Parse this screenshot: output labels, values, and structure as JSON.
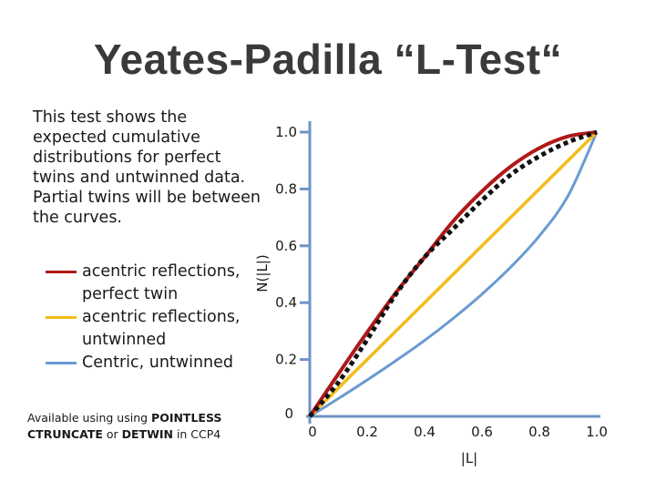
{
  "title": "Yeates-Padilla “L-Test“",
  "description": "This test shows the expected cumulative distributions for perfect twins and untwinned data. Partial twins will be between the curves.",
  "footer": {
    "p1": "Available using using ",
    "b1": "POINTLESS",
    "b2": "CTRUNCATE",
    "p2": " or ",
    "b3": "DETWIN",
    "p3": " in CCP4"
  },
  "colors": {
    "acentric_twin": "#b01818",
    "acentric_untwinned": "#f2bc1b",
    "centric_untwinned": "#6a9bd1",
    "axis": "#6f93c8",
    "observed": "#111111"
  },
  "chart_data": {
    "type": "line",
    "xlabel": "|L|",
    "ylabel": "N(|L|)",
    "xlim": [
      0,
      1
    ],
    "ylim": [
      0,
      1
    ],
    "xticks": [
      0,
      0.2,
      0.4,
      0.6,
      0.8,
      1.0
    ],
    "xtick_labels": [
      "0",
      "0.2",
      "0.4",
      "0.6",
      "0.8",
      "1.0"
    ],
    "yticks": [
      0,
      0.2,
      0.4,
      0.6,
      0.8,
      1.0
    ],
    "ytick_labels": [
      "0",
      "0.2",
      "0.4",
      "0.6",
      "0.8",
      "1.0"
    ],
    "legend_position": "left",
    "series": [
      {
        "name": "acentric reflections, perfect twin",
        "style": "solid",
        "x": [
          0,
          0.1,
          0.2,
          0.3,
          0.4,
          0.5,
          0.6,
          0.7,
          0.8,
          0.9,
          1.0
        ],
        "y": [
          0,
          0.15,
          0.296,
          0.435,
          0.56,
          0.687,
          0.792,
          0.879,
          0.944,
          0.985,
          1.0
        ]
      },
      {
        "name": "acentric reflections, untwinned",
        "style": "solid",
        "x": [
          0,
          0.2,
          0.4,
          0.6,
          0.8,
          1.0
        ],
        "y": [
          0,
          0.2,
          0.4,
          0.6,
          0.8,
          1.0
        ]
      },
      {
        "name": "Centric, untwinned",
        "style": "solid",
        "x": [
          0,
          0.1,
          0.2,
          0.3,
          0.4,
          0.5,
          0.6,
          0.7,
          0.8,
          0.9,
          1.0
        ],
        "y": [
          0,
          0.063,
          0.128,
          0.196,
          0.267,
          0.345,
          0.43,
          0.525,
          0.635,
          0.776,
          1.0
        ]
      },
      {
        "style": "dotted",
        "x": [
          0,
          0.1,
          0.2,
          0.3,
          0.4,
          0.5,
          0.6,
          0.7,
          0.8,
          0.9,
          1.0
        ],
        "y": [
          0,
          0.12,
          0.27,
          0.43,
          0.56,
          0.66,
          0.76,
          0.85,
          0.915,
          0.965,
          1.0
        ]
      }
    ]
  }
}
